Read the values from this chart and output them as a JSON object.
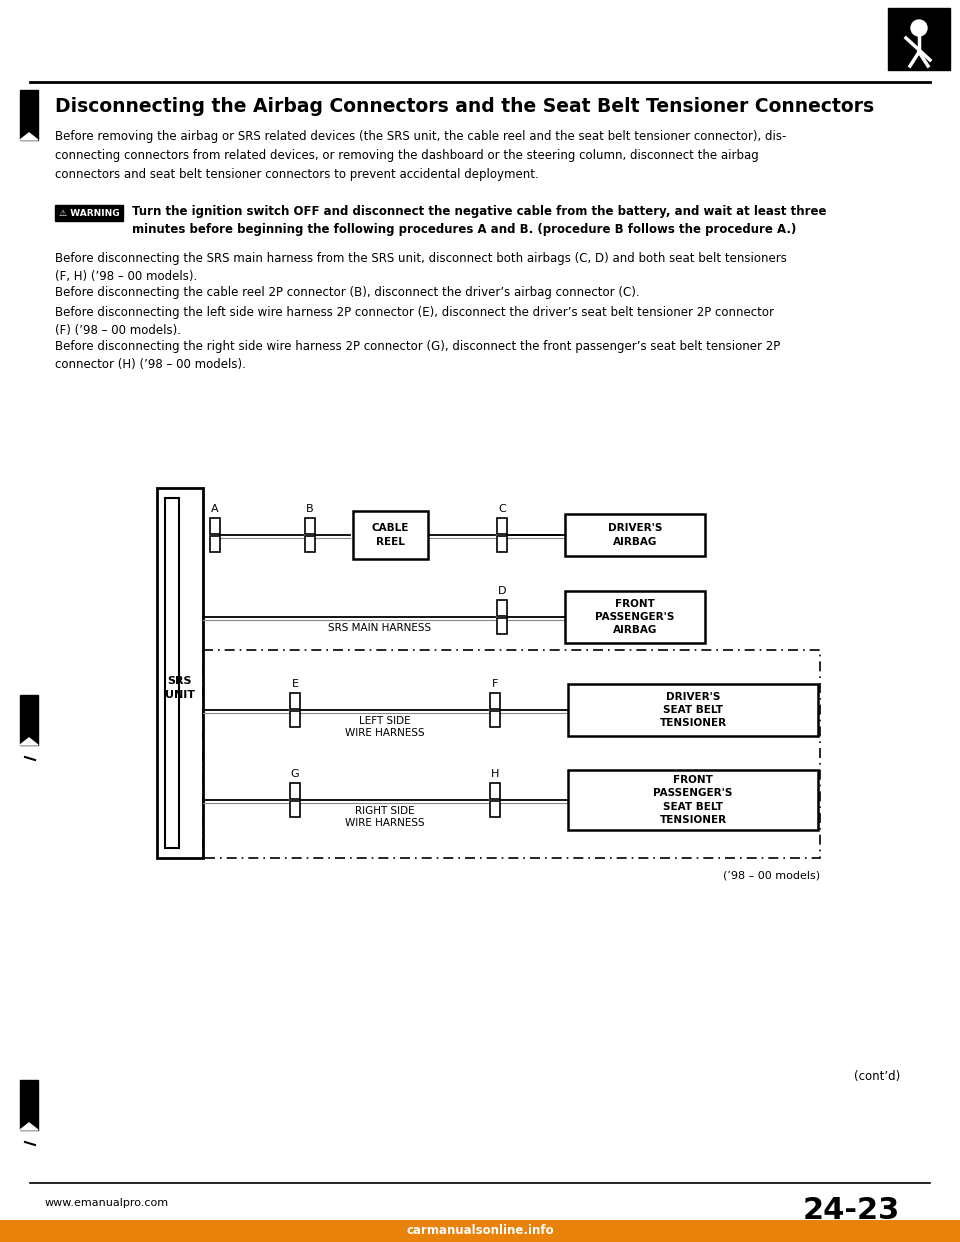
{
  "title": "Disconnecting the Airbag Connectors and the Seat Belt Tensioner Connectors",
  "bg_color": "#ffffff",
  "text_color": "#000000",
  "para1": "Before removing the airbag or SRS related devices (the SRS unit, the cable reel and the seat belt tensioner connector), dis-\nconnecting connectors from related devices, or removing the dashboard or the steering column, disconnect the airbag\nconnectors and seat belt tensioner connectors to prevent accidental deployment.",
  "warning_text": "Turn the ignition switch OFF and disconnect the negative cable from the battery, and wait at least three\nminutes before beginning the following procedures A and B. (procedure B follows the procedure A.)",
  "para2": "Before disconnecting the SRS main harness from the SRS unit, disconnect both airbags (C, D) and both seat belt tensioners\n(F, H) (’98 – 00 models).",
  "para3": "Before disconnecting the cable reel 2P connector (B), disconnect the driver’s airbag connector (C).",
  "para4": "Before disconnecting the left side wire harness 2P connector (E), disconnect the driver’s seat belt tensioner 2P connector\n(F) (’98 – 00 models).",
  "para5": "Before disconnecting the right side wire harness 2P connector (G), disconnect the front passenger’s seat belt tensioner 2P\nconnector (H) (’98 – 00 models).",
  "footer_left": "www.emanualpro.com",
  "footer_right": "24-23",
  "footer_bottom": "carmanualsonline.info",
  "contd": "(cont’d)",
  "models_note": "(’98 – 00 models)"
}
